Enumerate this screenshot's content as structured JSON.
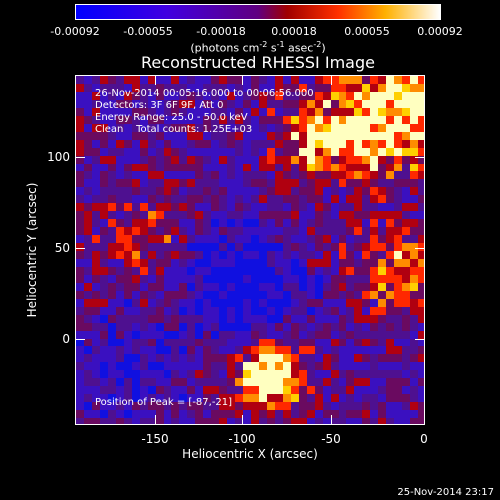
{
  "colorbar": {
    "tick_labels": [
      "-0.00092",
      "-0.00055",
      "-0.00018",
      "0.00018",
      "0.00055",
      "0.00092"
    ],
    "unit_label": {
      "text1": "(photons cm",
      "exp1": "-2",
      "text2": " s",
      "exp2": "-1",
      "text3": " asec",
      "exp3": "-2",
      "text4": ")"
    }
  },
  "title": "Reconstructed RHESSI Image",
  "annotations": {
    "line1": "26-Nov-2014 00:05:16.000 to 00:06:56.000",
    "line2": "Detectors: 3F 6F 9F, Att 0",
    "line3": "Energy Range: 25.0 - 50.0 keV",
    "line4": "Clean    Total counts: 1.25E+03",
    "peak": "Position of Peak = [-87,-21]"
  },
  "x_axis": {
    "label": "Heliocentric X (arcsec)",
    "ticks": [
      "-150",
      "-100",
      "-50",
      "0"
    ]
  },
  "y_axis": {
    "label": "Heliocentric Y (arcsec)",
    "ticks": [
      "100",
      "50",
      "0"
    ]
  },
  "timestamp": "25-Nov-2014 23:17",
  "colors": {
    "negative": "#0000ff",
    "zero": "#5a00a0",
    "positive_hot": "#ff8c00",
    "max": "#ffffc0"
  }
}
